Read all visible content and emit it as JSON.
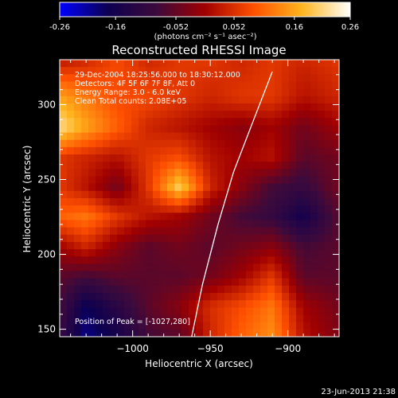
{
  "colorbar": {
    "ticks": [
      "-0.26",
      "-0.16",
      "-0.052",
      "0.052",
      "0.16",
      "0.26"
    ],
    "unit_label": "(photons cm⁻² s⁻¹ asec⁻²)",
    "min": -0.26,
    "max": 0.26,
    "colors": [
      "#0000ff",
      "#0d0050",
      "#3c0a3c",
      "#a00000",
      "#ff5000",
      "#ffb41e",
      "#ffffff"
    ]
  },
  "chart_data": {
    "type": "heatmap",
    "title": "Reconstructed RHESSI Image",
    "xlabel": "Heliocentric X (arcsec)",
    "ylabel": "Heliocentric Y (arcsec)",
    "xlim": [
      -1047,
      -867
    ],
    "ylim": [
      145,
      330
    ],
    "x_ticks": [
      -1000,
      -950,
      -900
    ],
    "x_tick_labels": [
      "−1000",
      "−950",
      "−900"
    ],
    "y_ticks": [
      150,
      200,
      250,
      300
    ],
    "y_tick_labels": [
      "150",
      "200",
      "250",
      "300"
    ],
    "annotations": [
      "29-Dec-2004 18:25:56.000 to 18:30:12.000",
      "Detectors: 4F 5F 6F 7F 8F, Att 0",
      "Energy Range: 3.0 - 6.0 keV",
      "Clean     Total counts: 2.08E+05"
    ],
    "peak_label": "Position of Peak = [-1027,280]",
    "peak": {
      "x": -1027,
      "y": 280
    },
    "limb_curve": [
      [
        -962,
        145
      ],
      [
        -955,
        180
      ],
      [
        -945,
        220
      ],
      [
        -935,
        255
      ],
      [
        -922,
        290
      ],
      [
        -910,
        322
      ]
    ],
    "intensity_grid": {
      "x": [
        -1047,
        -1030,
        -1010,
        -990,
        -970,
        -950,
        -930,
        -910,
        -890,
        -867
      ],
      "y": [
        145,
        165,
        185,
        205,
        225,
        245,
        265,
        285,
        305,
        330
      ],
      "values": [
        [
          -0.1,
          -0.2,
          -0.16,
          -0.08,
          -0.06,
          0.04,
          0.1,
          0.14,
          0.02,
          -0.03
        ],
        [
          -0.08,
          -0.18,
          -0.12,
          -0.06,
          -0.02,
          0.05,
          0.08,
          0.12,
          0.0,
          -0.04
        ],
        [
          -0.06,
          -0.08,
          -0.06,
          -0.06,
          -0.06,
          -0.04,
          0.0,
          0.06,
          -0.06,
          -0.06
        ],
        [
          0.0,
          0.04,
          -0.02,
          -0.06,
          -0.04,
          -0.06,
          -0.04,
          -0.02,
          -0.08,
          -0.06
        ],
        [
          0.1,
          0.12,
          0.06,
          0.02,
          0.0,
          -0.04,
          -0.08,
          -0.1,
          -0.16,
          -0.06
        ],
        [
          0.06,
          0.02,
          -0.04,
          0.06,
          0.2,
          0.04,
          -0.02,
          -0.08,
          -0.1,
          -0.04
        ],
        [
          0.06,
          0.04,
          0.02,
          0.06,
          0.08,
          0.02,
          0.0,
          0.02,
          -0.06,
          -0.04
        ],
        [
          0.22,
          0.16,
          0.1,
          0.04,
          0.02,
          0.0,
          -0.02,
          0.0,
          -0.04,
          0.0
        ],
        [
          0.16,
          0.12,
          0.08,
          0.08,
          0.06,
          0.04,
          0.06,
          0.06,
          0.02,
          0.04
        ],
        [
          0.02,
          0.04,
          0.08,
          0.04,
          0.06,
          0.06,
          0.04,
          0.06,
          0.04,
          0.06
        ]
      ]
    }
  },
  "footer": {
    "timestamp": "23-Jun-2013 21:38"
  }
}
